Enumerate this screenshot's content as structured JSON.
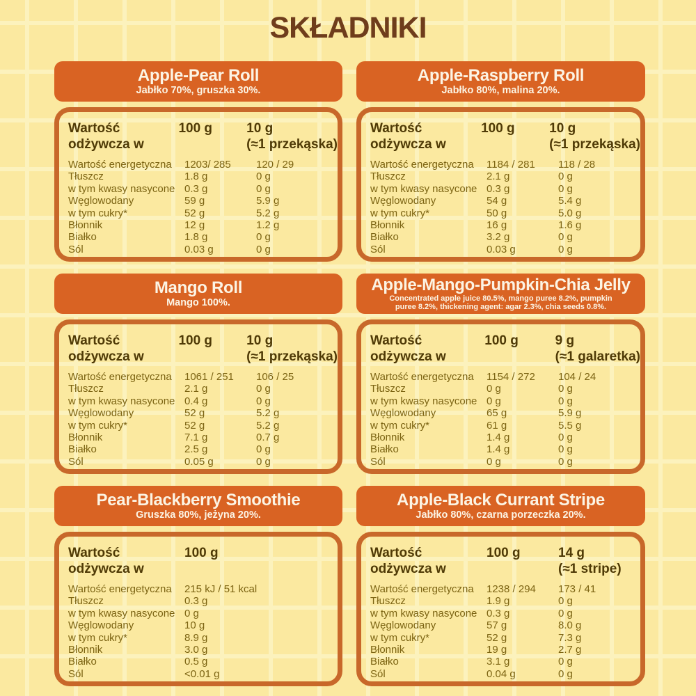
{
  "page_title": "SKŁADNIKI",
  "colors": {
    "background": "#FBE9A0",
    "grid_line": "#FCF2BD",
    "header_orange": "#D96323",
    "table_border": "#C8682A",
    "title_brown": "#6F3D1C",
    "table_header_text": "#4F3A06",
    "table_row_text": "#7C6413",
    "header_text": "#FCF4E4"
  },
  "shared": {
    "nutrition_header_label": "Wartość odżywcza w"
  },
  "cards": [
    {
      "title": "Apple-Pear Roll",
      "subtitle": "Jabłko 70%, gruszka 30%.",
      "col1": "100 g",
      "col2_line1": "10 g",
      "col2_line2": "(≈1 przekąska)",
      "rows": [
        {
          "label": "Wartość energetyczna",
          "v1": "1203/ 285",
          "v2": "120 / 29"
        },
        {
          "label": "Tłuszcz",
          "v1": "1.8 g",
          "v2": "0 g"
        },
        {
          "label": "w tym kwasy nasycone",
          "v1": "0.3 g",
          "v2": "0 g"
        },
        {
          "label": "Węglowodany",
          "v1": "59 g",
          "v2": "5.9 g"
        },
        {
          "label": "w tym cukry*",
          "v1": "52 g",
          "v2": "5.2 g"
        },
        {
          "label": "Błonnik",
          "v1": "12 g",
          "v2": "1.2 g"
        },
        {
          "label": "Białko",
          "v1": "1.8 g",
          "v2": "0 g"
        },
        {
          "label": "Sól",
          "v1": "0.03 g",
          "v2": "0 g"
        }
      ]
    },
    {
      "title": "Apple-Raspberry Roll",
      "subtitle": "Jabłko 80%, malina 20%.",
      "col1": "100 g",
      "col2_line1": "10 g",
      "col2_line2": "(≈1 przekąska)",
      "rows": [
        {
          "label": "Wartość energetyczna",
          "v1": "1184 / 281",
          "v2": "118 / 28"
        },
        {
          "label": "Tłuszcz",
          "v1": "2.1 g",
          "v2": "0 g"
        },
        {
          "label": "w tym kwasy nasycone",
          "v1": "0.3 g",
          "v2": "0 g"
        },
        {
          "label": "Węglowodany",
          "v1": "54 g",
          "v2": "5.4 g"
        },
        {
          "label": "w tym cukry*",
          "v1": "50 g",
          "v2": "5.0 g"
        },
        {
          "label": "Błonnik",
          "v1": "16 g",
          "v2": "1.6 g"
        },
        {
          "label": "Białko",
          "v1": "3.2 g",
          "v2": "0 g"
        },
        {
          "label": "Sól",
          "v1": "0.03 g",
          "v2": "0 g"
        }
      ]
    },
    {
      "title": "Mango Roll",
      "subtitle": "Mango 100%.",
      "col1": "100 g",
      "col2_line1": "10 g",
      "col2_line2": "(≈1 przekąska)",
      "rows": [
        {
          "label": "Wartość energetyczna",
          "v1": "1061 / 251",
          "v2": "106 / 25"
        },
        {
          "label": "Tłuszcz",
          "v1": "2.1 g",
          "v2": "0 g"
        },
        {
          "label": "w tym kwasy nasycone",
          "v1": "0.4 g",
          "v2": "0 g"
        },
        {
          "label": "Węglowodany",
          "v1": "52 g",
          "v2": "5.2 g"
        },
        {
          "label": "w tym cukry*",
          "v1": "52 g",
          "v2": "5.2 g"
        },
        {
          "label": "Błonnik",
          "v1": "7.1 g",
          "v2": "0.7 g"
        },
        {
          "label": "Białko",
          "v1": "2.5 g",
          "v2": "0 g"
        },
        {
          "label": "Sól",
          "v1": "0.05 g",
          "v2": "0 g"
        }
      ]
    },
    {
      "title": "Apple-Mango-Pumpkin-Chia Jelly",
      "subtitle": "Concentrated apple juice 80.5%, mango puree 8.2%, pumpkin puree 8.2%, thickening agent: agar 2.3%, chia seeds 0.8%.",
      "col1": "100 g",
      "col2_line1": "9 g",
      "col2_line2": "(≈1 galaretka)",
      "rows": [
        {
          "label": "Wartość energetyczna",
          "v1": "1154 / 272",
          "v2": "104 / 24"
        },
        {
          "label": "Tłuszcz",
          "v1": "0 g",
          "v2": "0 g"
        },
        {
          "label": "w tym kwasy nasycone",
          "v1": "0 g",
          "v2": "0 g"
        },
        {
          "label": "Węglowodany",
          "v1": "65 g",
          "v2": "5.9 g"
        },
        {
          "label": "w tym cukry*",
          "v1": "61 g",
          "v2": "5.5 g"
        },
        {
          "label": "Błonnik",
          "v1": "1.4 g",
          "v2": "0 g"
        },
        {
          "label": "Białko",
          "v1": "1.4 g",
          "v2": "0 g"
        },
        {
          "label": "Sól",
          "v1": "0 g",
          "v2": "0 g"
        }
      ]
    },
    {
      "title": "Pear-Blackberry Smoothie",
      "subtitle": "Gruszka 80%, jeżyna 20%.",
      "col1": "100 g",
      "rows": [
        {
          "label": "Wartość energetyczna",
          "v1": "215 kJ / 51 kcal"
        },
        {
          "label": "Tłuszcz",
          "v1": "0.3 g"
        },
        {
          "label": "w tym kwasy nasycone",
          "v1": "0 g"
        },
        {
          "label": "Węglowodany",
          "v1": "10 g"
        },
        {
          "label": "w tym cukry*",
          "v1": "8.9 g"
        },
        {
          "label": "Błonnik",
          "v1": "3.0 g"
        },
        {
          "label": "Białko",
          "v1": "0.5 g"
        },
        {
          "label": "Sól",
          "v1": "<0.01 g"
        }
      ]
    },
    {
      "title": "Apple-Black Currant Stripe",
      "subtitle": "Jabłko 80%, czarna porzeczka 20%.",
      "col1": "100 g",
      "col2_line1": "14 g",
      "col2_line2": "(≈1 stripe)",
      "rows": [
        {
          "label": "Wartość energetyczna",
          "v1": "1238 / 294",
          "v2": "173 / 41"
        },
        {
          "label": "Tłuszcz",
          "v1": "1.9 g",
          "v2": "0 g"
        },
        {
          "label": "w tym kwasy nasycone",
          "v1": "0.3 g",
          "v2": "0 g"
        },
        {
          "label": "Węglowodany",
          "v1": "57 g",
          "v2": "8.0 g"
        },
        {
          "label": "w tym cukry*",
          "v1": "52 g",
          "v2": "7.3 g"
        },
        {
          "label": "Błonnik",
          "v1": "19 g",
          "v2": "2.7 g"
        },
        {
          "label": "Białko",
          "v1": "3.1 g",
          "v2": "0 g"
        },
        {
          "label": "Sól",
          "v1": "0.04 g",
          "v2": "0 g"
        }
      ]
    }
  ]
}
